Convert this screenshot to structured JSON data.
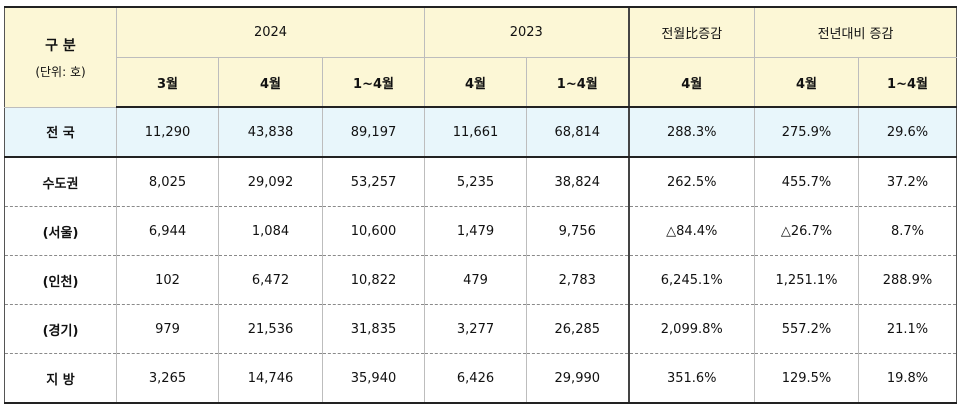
{
  "header": {
    "category_label": "구 분",
    "unit_label": "(단위: 호)",
    "group_2024": "2024",
    "group_2023": "2023",
    "group_mom": "전월比증감",
    "group_yoy": "전년대비 증감",
    "sub_labels": [
      "3월",
      "4월",
      "1~4월",
      "4월",
      "1~4월",
      "4월",
      "4월",
      "1~4월"
    ]
  },
  "rows": [
    {
      "region": "전 국",
      "values": [
        "11,290",
        "43,838",
        "89,197",
        "11,661",
        "68,814",
        "288.3%",
        "275.9%",
        "29.6%"
      ]
    },
    {
      "region": "수도권",
      "values": [
        "8,025",
        "29,092",
        "53,257",
        "5,235",
        "38,824",
        "262.5%",
        "455.7%",
        "37.2%"
      ]
    },
    {
      "region": "(서울)",
      "values": [
        "6,944",
        "1,084",
        "10,600",
        "1,479",
        "9,756",
        "△84.4%",
        "△26.7%",
        "8.7%"
      ]
    },
    {
      "region": "(인천)",
      "values": [
        "102",
        "6,472",
        "10,822",
        "479",
        "2,783",
        "6,245.1%",
        "1,251.1%",
        "288.9%"
      ]
    },
    {
      "region": "(경기)",
      "values": [
        "979",
        "21,536",
        "31,835",
        "3,277",
        "26,285",
        "2,099.8%",
        "557.2%",
        "21.1%"
      ]
    },
    {
      "region": "지 방",
      "values": [
        "3,265",
        "14,746",
        "35,940",
        "6,426",
        "29,990",
        "351.6%",
        "129.5%",
        "19.8%"
      ]
    }
  ]
}
